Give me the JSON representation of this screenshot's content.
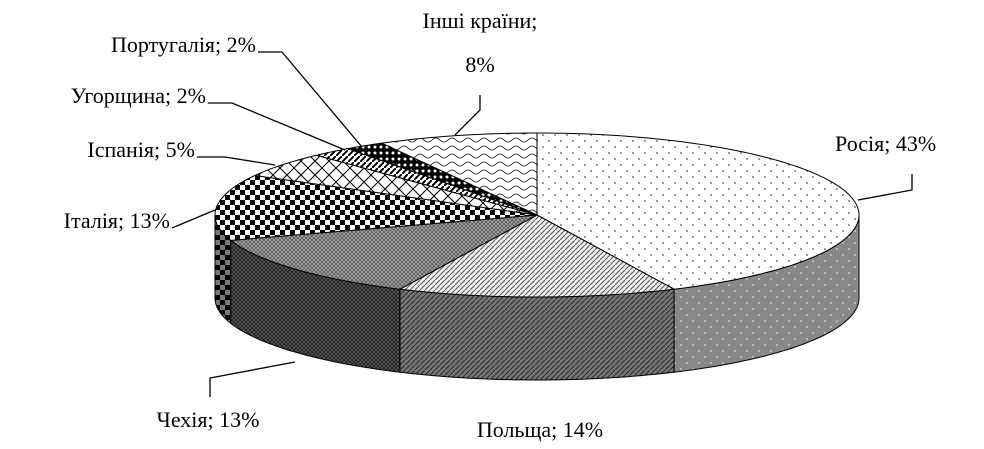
{
  "chart_data": {
    "type": "pie",
    "values": [
      43,
      14,
      13,
      13,
      5,
      2,
      2,
      8
    ],
    "value_labels": [
      "Росія; 43%",
      "Польща; 14%",
      "Чехія; 13%",
      "Італія; 13%",
      "Іспанія; 5%",
      "Угорщина; 2%",
      "Португалія; 2%",
      "Інші країни; 8%"
    ]
  }
}
